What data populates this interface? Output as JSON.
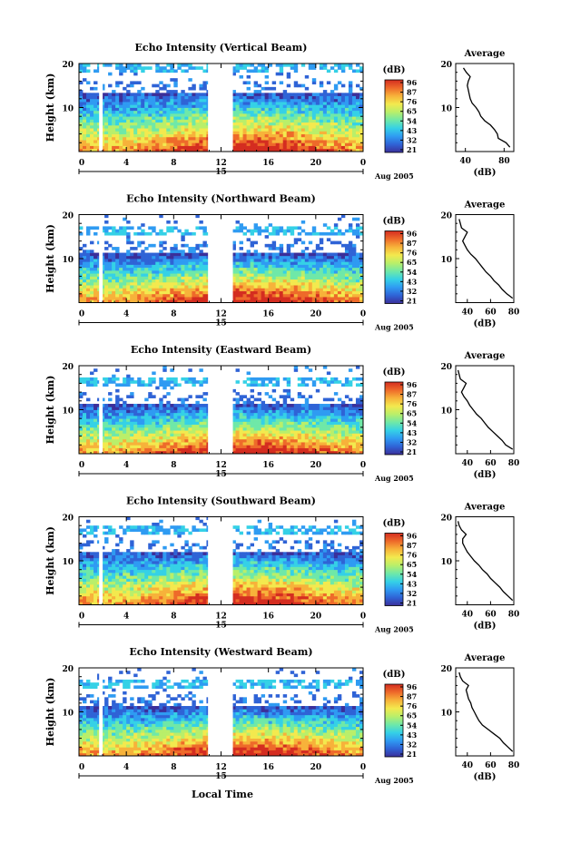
{
  "figure": {
    "xlabel_bottom": "Local Time"
  },
  "colorbar": {
    "unit": "(dB)",
    "colors": [
      "#3b2f9a",
      "#2f63d6",
      "#2f9bf2",
      "#35d1e6",
      "#6fe8a8",
      "#b9ef6a",
      "#f3e94e",
      "#f7b23a",
      "#ee6a2a",
      "#d42d20"
    ]
  },
  "chart_data": [
    {
      "type": "heatmap",
      "title": "Echo Intensity (Vertical Beam)",
      "ylabel": "Height (km)",
      "ylim": [
        0,
        20
      ],
      "yticks": [
        "20",
        "10"
      ],
      "xlim": [
        0,
        24
      ],
      "xticks": [
        "0",
        "4",
        "8",
        "12",
        "16",
        "20",
        "0"
      ],
      "date_label": "15",
      "month_label": "Aug 2005",
      "colorbar_ticks": [
        "96",
        "87",
        "76",
        "65",
        "54",
        "43",
        "32",
        "21"
      ],
      "data_gaps_hours": [
        [
          1.7,
          2.0
        ],
        [
          10.9,
          13.0
        ]
      ],
      "echo_top_km": 13,
      "upper_layer_km": 18.5,
      "average": {
        "title": "Average",
        "xlabel": "(dB)",
        "xticks": [
          "40",
          "80"
        ],
        "xlim": [
          30,
          90
        ],
        "heights_km": [
          1,
          2,
          3,
          4,
          5,
          6,
          7,
          8,
          9,
          10,
          11,
          12,
          13,
          14,
          15,
          16,
          17,
          18,
          19
        ],
        "values_db": [
          86,
          82,
          74,
          73,
          70,
          66,
          60,
          56,
          54,
          51,
          47,
          45,
          44,
          43,
          42,
          43,
          45,
          41,
          38
        ]
      }
    },
    {
      "type": "heatmap",
      "title": "Echo Intensity (Northward Beam)",
      "ylabel": "Height (km)",
      "ylim": [
        0,
        20
      ],
      "yticks": [
        "20",
        "10"
      ],
      "xlim": [
        0,
        24
      ],
      "xticks": [
        "0",
        "4",
        "8",
        "12",
        "16",
        "20",
        "0"
      ],
      "date_label": "15",
      "month_label": "Aug 2005",
      "colorbar_ticks": [
        "96",
        "87",
        "76",
        "65",
        "54",
        "43",
        "32",
        "21"
      ],
      "data_gaps_hours": [
        [
          1.7,
          2.0
        ],
        [
          10.9,
          13.0
        ]
      ],
      "echo_top_km": 11,
      "upper_layer_km": 16,
      "average": {
        "title": "Average",
        "xlabel": "(dB)",
        "xticks": [
          "40",
          "60",
          "80"
        ],
        "xlim": [
          30,
          80
        ],
        "heights_km": [
          1,
          2,
          3,
          4,
          5,
          6,
          7,
          8,
          9,
          10,
          11,
          12,
          13,
          14,
          15,
          16,
          17,
          18,
          19
        ],
        "values_db": [
          79,
          74,
          70,
          67,
          63,
          60,
          56,
          53,
          50,
          47,
          43,
          40,
          38,
          36,
          38,
          40,
          35,
          34,
          33
        ]
      }
    },
    {
      "type": "heatmap",
      "title": "Echo Intensity (Eastward Beam)",
      "ylabel": "Height (km)",
      "ylim": [
        0,
        20
      ],
      "yticks": [
        "20",
        "10"
      ],
      "xlim": [
        0,
        24
      ],
      "xticks": [
        "0",
        "4",
        "8",
        "12",
        "16",
        "20",
        "0"
      ],
      "date_label": "15",
      "month_label": "Aug 2005",
      "colorbar_ticks": [
        "96",
        "87",
        "76",
        "65",
        "54",
        "43",
        "32",
        "21"
      ],
      "data_gaps_hours": [
        [
          1.7,
          2.0
        ],
        [
          10.9,
          13.0
        ]
      ],
      "echo_top_km": 11,
      "upper_layer_km": 16,
      "average": {
        "title": "Average",
        "xlabel": "(dB)",
        "xticks": [
          "40",
          "60",
          "80"
        ],
        "xlim": [
          30,
          80
        ],
        "heights_km": [
          1,
          2,
          3,
          4,
          5,
          6,
          7,
          8,
          9,
          10,
          11,
          12,
          13,
          14,
          15,
          16,
          17,
          18,
          19
        ],
        "values_db": [
          79,
          73,
          70,
          66,
          62,
          58,
          55,
          52,
          48,
          45,
          42,
          40,
          37,
          35,
          37,
          39,
          34,
          33,
          32
        ]
      }
    },
    {
      "type": "heatmap",
      "title": "Echo Intensity (Southward Beam)",
      "ylabel": "Height (km)",
      "ylim": [
        0,
        20
      ],
      "yticks": [
        "20",
        "10"
      ],
      "xlim": [
        0,
        24
      ],
      "xticks": [
        "0",
        "4",
        "8",
        "12",
        "16",
        "20",
        "0"
      ],
      "date_label": "15",
      "month_label": "Aug 2005",
      "colorbar_ticks": [
        "96",
        "87",
        "76",
        "65",
        "54",
        "43",
        "32",
        "21"
      ],
      "data_gaps_hours": [
        [
          1.7,
          2.0
        ],
        [
          10.9,
          13.0
        ]
      ],
      "echo_top_km": 12,
      "upper_layer_km": 16.5,
      "average": {
        "title": "Average",
        "xlabel": "(dB)",
        "xticks": [
          "40",
          "60",
          "80"
        ],
        "xlim": [
          30,
          80
        ],
        "heights_km": [
          1,
          2,
          3,
          4,
          5,
          6,
          7,
          8,
          9,
          10,
          11,
          12,
          13,
          14,
          15,
          16,
          17,
          18,
          19
        ],
        "values_db": [
          79,
          75,
          71,
          68,
          64,
          60,
          57,
          53,
          50,
          46,
          43,
          40,
          38,
          36,
          36,
          39,
          35,
          33,
          32
        ]
      }
    },
    {
      "type": "heatmap",
      "title": "Echo Intensity (Westward Beam)",
      "ylabel": "Height (km)",
      "ylim": [
        0,
        20
      ],
      "yticks": [
        "20",
        "10"
      ],
      "xlim": [
        0,
        24
      ],
      "xticks": [
        "0",
        "4",
        "8",
        "12",
        "16",
        "20",
        "0"
      ],
      "date_label": "15",
      "month_label": "Aug 2005",
      "colorbar_ticks": [
        "96",
        "87",
        "76",
        "65",
        "54",
        "43",
        "32",
        "21"
      ],
      "data_gaps_hours": [
        [
          1.7,
          2.0
        ],
        [
          10.9,
          13.0
        ]
      ],
      "echo_top_km": 11,
      "upper_layer_km": 16,
      "average": {
        "title": "Average",
        "xlabel": "(dB)",
        "xticks": [
          "40",
          "60",
          "80"
        ],
        "xlim": [
          30,
          80
        ],
        "heights_km": [
          1,
          2,
          3,
          4,
          5,
          6,
          7,
          8,
          9,
          10,
          11,
          12,
          13,
          14,
          15,
          16,
          17,
          18,
          19
        ],
        "values_db": [
          79,
          75,
          71,
          68,
          63,
          58,
          53,
          50,
          48,
          46,
          44,
          43,
          41,
          40,
          39,
          41,
          36,
          34,
          33
        ]
      }
    }
  ]
}
